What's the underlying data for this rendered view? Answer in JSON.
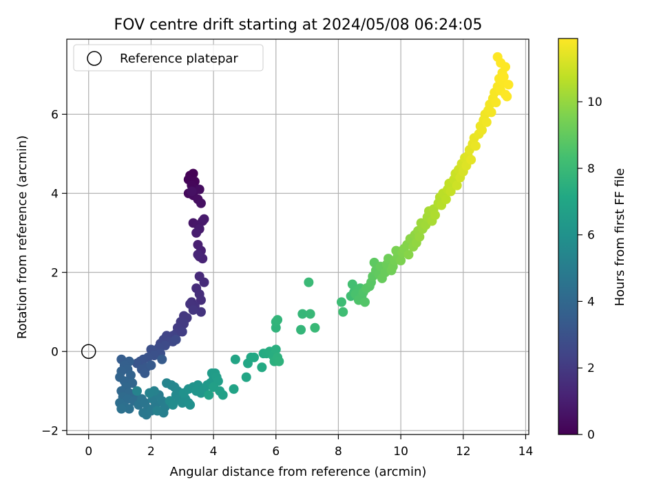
{
  "chart_data": {
    "type": "scatter",
    "title": "FOV centre drift starting at 2024/05/08 06:24:05",
    "xlabel": "Angular distance from reference (arcmin)",
    "ylabel": "Rotation from reference (arcmin)",
    "xlim": [
      -0.7,
      14.1
    ],
    "ylim": [
      -2.1,
      7.9
    ],
    "xticks": [
      0,
      2,
      4,
      6,
      8,
      10,
      12,
      14
    ],
    "yticks": [
      -2,
      0,
      2,
      4,
      6
    ],
    "grid": true,
    "legend": {
      "position": "top-left",
      "entries": [
        "Reference platepar"
      ]
    },
    "reference_point": {
      "x": 0,
      "y": 0,
      "label": "Reference platepar"
    },
    "colorbar": {
      "label": "Hours from first FF file",
      "range": [
        0,
        11.9
      ],
      "ticks": [
        0,
        2,
        4,
        6,
        8,
        10
      ],
      "colormap": "viridis"
    },
    "points": [
      [
        3.25,
        4.45,
        0.0
      ],
      [
        3.35,
        4.5,
        0.05
      ],
      [
        3.2,
        4.35,
        0.1
      ],
      [
        3.4,
        4.3,
        0.15
      ],
      [
        3.3,
        4.2,
        0.2
      ],
      [
        3.45,
        4.1,
        0.25
      ],
      [
        3.2,
        4.0,
        0.3
      ],
      [
        3.35,
        3.95,
        0.35
      ],
      [
        3.55,
        4.1,
        0.4
      ],
      [
        3.5,
        3.85,
        0.45
      ],
      [
        3.6,
        3.75,
        0.5
      ],
      [
        3.3,
        4.05,
        0.55
      ],
      [
        3.35,
        3.25,
        0.7
      ],
      [
        3.5,
        3.2,
        0.75
      ],
      [
        3.65,
        3.3,
        0.8
      ],
      [
        3.7,
        3.35,
        0.85
      ],
      [
        3.55,
        3.1,
        0.9
      ],
      [
        3.45,
        3.0,
        0.95
      ],
      [
        3.5,
        2.7,
        1.05
      ],
      [
        3.6,
        2.55,
        1.1
      ],
      [
        3.55,
        2.4,
        1.15
      ],
      [
        3.65,
        2.35,
        1.2
      ],
      [
        3.5,
        2.45,
        1.25
      ],
      [
        3.55,
        1.9,
        1.4
      ],
      [
        3.7,
        1.75,
        1.45
      ],
      [
        3.45,
        1.6,
        1.5
      ],
      [
        3.55,
        1.45,
        1.55
      ],
      [
        3.6,
        1.3,
        1.6
      ],
      [
        3.3,
        1.25,
        1.65
      ],
      [
        3.4,
        1.15,
        1.7
      ],
      [
        3.25,
        1.2,
        1.75
      ],
      [
        3.6,
        1.0,
        1.8
      ],
      [
        3.35,
        1.05,
        1.85
      ],
      [
        3.05,
        0.9,
        1.9
      ],
      [
        3.15,
        0.85,
        1.95
      ],
      [
        2.95,
        0.75,
        2.0
      ],
      [
        3.05,
        0.7,
        2.05
      ],
      [
        2.85,
        0.6,
        2.1
      ],
      [
        3.0,
        0.5,
        2.15
      ],
      [
        2.8,
        0.45,
        2.2
      ],
      [
        2.7,
        0.4,
        2.3
      ],
      [
        2.6,
        0.35,
        2.35
      ],
      [
        2.5,
        0.4,
        2.4
      ],
      [
        2.4,
        0.3,
        2.45
      ],
      [
        2.55,
        0.25,
        2.5
      ],
      [
        2.3,
        0.2,
        2.55
      ],
      [
        2.7,
        0.25,
        2.6
      ],
      [
        2.8,
        0.3,
        2.65
      ],
      [
        2.45,
        0.15,
        2.7
      ],
      [
        2.25,
        0.1,
        2.75
      ],
      [
        2.1,
        0.0,
        2.8
      ],
      [
        2.0,
        0.05,
        2.85
      ],
      [
        2.3,
        -0.05,
        2.9
      ],
      [
        2.1,
        -0.1,
        2.95
      ],
      [
        1.9,
        -0.15,
        3.0
      ],
      [
        1.75,
        -0.2,
        3.05
      ],
      [
        1.65,
        -0.25,
        3.1
      ],
      [
        1.55,
        -0.3,
        3.15
      ],
      [
        1.85,
        -0.4,
        3.2
      ],
      [
        1.7,
        -0.45,
        3.25
      ],
      [
        1.8,
        -0.55,
        3.3
      ],
      [
        2.0,
        -0.35,
        3.35
      ],
      [
        2.35,
        -0.2,
        3.4
      ],
      [
        1.05,
        -0.2,
        3.5
      ],
      [
        1.3,
        -0.25,
        3.55
      ],
      [
        1.15,
        -0.35,
        3.6
      ],
      [
        1.25,
        -0.45,
        3.65
      ],
      [
        1.05,
        -0.5,
        3.7
      ],
      [
        1.35,
        -0.6,
        3.75
      ],
      [
        1.0,
        -0.65,
        3.8
      ],
      [
        1.15,
        -0.75,
        3.85
      ],
      [
        1.4,
        -0.8,
        3.9
      ],
      [
        1.2,
        -0.9,
        3.95
      ],
      [
        1.05,
        -1.0,
        4.0
      ],
      [
        1.3,
        -1.05,
        4.05
      ],
      [
        1.5,
        -1.1,
        4.1
      ],
      [
        1.1,
        -1.15,
        4.15
      ],
      [
        1.25,
        -1.2,
        4.2
      ],
      [
        1.45,
        -1.25,
        4.25
      ],
      [
        1.0,
        -1.3,
        4.3
      ],
      [
        1.15,
        -1.4,
        4.35
      ],
      [
        1.3,
        -1.45,
        4.4
      ],
      [
        1.05,
        -1.45,
        4.45
      ],
      [
        1.6,
        -1.35,
        4.5
      ],
      [
        1.7,
        -1.2,
        4.55
      ],
      [
        1.8,
        -1.3,
        4.6
      ],
      [
        1.9,
        -1.45,
        4.65
      ],
      [
        1.75,
        -1.55,
        4.7
      ],
      [
        1.85,
        -1.6,
        4.75
      ],
      [
        2.0,
        -1.5,
        4.8
      ],
      [
        2.15,
        -1.35,
        4.85
      ],
      [
        2.05,
        -1.2,
        4.9
      ],
      [
        2.25,
        -1.1,
        4.95
      ],
      [
        2.35,
        -1.25,
        5.0
      ],
      [
        2.45,
        -1.4,
        5.05
      ],
      [
        2.4,
        -1.55,
        5.1
      ],
      [
        2.2,
        -1.5,
        5.15
      ],
      [
        2.1,
        -1.0,
        5.2
      ],
      [
        1.95,
        -1.05,
        5.25
      ],
      [
        1.55,
        -1.0,
        5.3
      ],
      [
        2.5,
        -0.8,
        5.35
      ],
      [
        2.65,
        -0.85,
        5.4
      ],
      [
        2.75,
        -0.9,
        5.45
      ],
      [
        2.85,
        -1.0,
        5.5
      ],
      [
        2.8,
        -1.1,
        5.55
      ],
      [
        2.9,
        -1.2,
        5.6
      ],
      [
        2.6,
        -1.25,
        5.65
      ],
      [
        2.7,
        -1.35,
        5.7
      ],
      [
        3.0,
        -1.3,
        5.75
      ],
      [
        3.1,
        -1.2,
        5.8
      ],
      [
        3.2,
        -1.3,
        5.85
      ],
      [
        3.25,
        -1.35,
        5.9
      ],
      [
        3.05,
        -1.05,
        5.95
      ],
      [
        3.2,
        -0.95,
        6.0
      ],
      [
        3.35,
        -0.9,
        6.05
      ],
      [
        3.5,
        -0.85,
        6.1
      ],
      [
        3.45,
        -1.0,
        6.15
      ],
      [
        3.6,
        -1.05,
        6.2
      ],
      [
        3.7,
        -0.95,
        6.25
      ],
      [
        3.8,
        -0.85,
        6.3
      ],
      [
        3.9,
        -0.8,
        6.35
      ],
      [
        4.0,
        -0.7,
        6.4
      ],
      [
        3.95,
        -0.55,
        6.45
      ],
      [
        4.05,
        -0.55,
        6.5
      ],
      [
        4.1,
        -0.65,
        6.55
      ],
      [
        4.15,
        -0.75,
        6.6
      ],
      [
        4.0,
        -0.9,
        6.65
      ],
      [
        4.2,
        -1.0,
        6.7
      ],
      [
        4.3,
        -1.1,
        6.75
      ],
      [
        3.85,
        -1.1,
        6.8
      ],
      [
        4.65,
        -0.95,
        6.9
      ],
      [
        4.7,
        -0.2,
        6.95
      ],
      [
        5.05,
        -0.65,
        7.0
      ],
      [
        5.1,
        -0.3,
        7.05
      ],
      [
        5.2,
        -0.15,
        7.1
      ],
      [
        5.3,
        -0.15,
        7.15
      ],
      [
        5.55,
        -0.4,
        7.2
      ],
      [
        5.6,
        -0.05,
        7.25
      ],
      [
        5.7,
        -0.05,
        7.3
      ],
      [
        5.8,
        0.0,
        7.35
      ],
      [
        5.9,
        -0.1,
        7.4
      ],
      [
        6.0,
        0.05,
        7.45
      ],
      [
        5.95,
        -0.25,
        7.5
      ],
      [
        6.05,
        -0.15,
        7.55
      ],
      [
        6.1,
        -0.25,
        7.6
      ],
      [
        6.0,
        0.6,
        7.65
      ],
      [
        6.0,
        0.75,
        7.7
      ],
      [
        6.05,
        0.8,
        7.75
      ],
      [
        6.8,
        0.55,
        7.8
      ],
      [
        6.85,
        0.95,
        7.85
      ],
      [
        7.1,
        0.95,
        7.9
      ],
      [
        7.25,
        0.6,
        7.95
      ],
      [
        7.05,
        1.75,
        8.0
      ],
      [
        8.1,
        1.25,
        8.1
      ],
      [
        8.15,
        1.0,
        8.15
      ],
      [
        8.4,
        1.4,
        8.2
      ],
      [
        8.5,
        1.5,
        8.25
      ],
      [
        8.45,
        1.7,
        8.3
      ],
      [
        8.6,
        1.55,
        8.35
      ],
      [
        8.7,
        1.6,
        8.4
      ],
      [
        8.55,
        1.45,
        8.45
      ],
      [
        8.75,
        1.4,
        8.5
      ],
      [
        8.65,
        1.3,
        8.55
      ],
      [
        8.8,
        1.5,
        8.6
      ],
      [
        8.85,
        1.25,
        8.65
      ],
      [
        8.9,
        1.6,
        8.7
      ],
      [
        9.0,
        1.65,
        8.75
      ],
      [
        9.05,
        1.75,
        8.8
      ],
      [
        9.1,
        1.9,
        8.85
      ],
      [
        9.15,
        2.25,
        8.9
      ],
      [
        9.2,
        2.05,
        8.95
      ],
      [
        9.3,
        1.95,
        9.0
      ],
      [
        9.35,
        2.15,
        9.05
      ],
      [
        9.4,
        1.85,
        9.1
      ],
      [
        9.5,
        2.0,
        9.15
      ],
      [
        9.55,
        2.2,
        9.2
      ],
      [
        9.6,
        2.35,
        9.25
      ],
      [
        9.7,
        2.05,
        9.3
      ],
      [
        9.75,
        2.15,
        9.35
      ],
      [
        9.8,
        2.3,
        9.4
      ],
      [
        9.9,
        2.4,
        9.45
      ],
      [
        9.85,
        2.55,
        9.5
      ],
      [
        10.0,
        2.3,
        9.55
      ],
      [
        10.05,
        2.5,
        9.6
      ],
      [
        10.1,
        2.6,
        9.65
      ],
      [
        10.2,
        2.7,
        9.7
      ],
      [
        10.25,
        2.45,
        9.75
      ],
      [
        10.3,
        2.85,
        9.8
      ],
      [
        10.4,
        2.65,
        9.85
      ],
      [
        10.45,
        2.95,
        9.9
      ],
      [
        10.5,
        2.75,
        9.95
      ],
      [
        10.55,
        3.05,
        10.0
      ],
      [
        10.6,
        2.9,
        10.05
      ],
      [
        10.7,
        3.1,
        10.1
      ],
      [
        10.65,
        3.25,
        10.15
      ],
      [
        10.8,
        3.2,
        10.2
      ],
      [
        10.85,
        3.4,
        10.25
      ],
      [
        10.9,
        3.55,
        10.3
      ],
      [
        11.0,
        3.3,
        10.35
      ],
      [
        11.05,
        3.6,
        10.4
      ],
      [
        11.1,
        3.45,
        10.45
      ],
      [
        11.2,
        3.75,
        10.5
      ],
      [
        11.25,
        3.9,
        10.55
      ],
      [
        11.3,
        3.7,
        10.6
      ],
      [
        11.35,
        4.0,
        10.65
      ],
      [
        11.45,
        3.85,
        10.7
      ],
      [
        11.5,
        4.1,
        10.75
      ],
      [
        11.55,
        4.25,
        10.8
      ],
      [
        11.6,
        4.05,
        10.85
      ],
      [
        11.7,
        4.35,
        10.9
      ],
      [
        11.75,
        4.5,
        10.95
      ],
      [
        11.8,
        4.2,
        11.0
      ],
      [
        11.85,
        4.6,
        11.05
      ],
      [
        11.9,
        4.4,
        11.1
      ],
      [
        11.95,
        4.75,
        11.15
      ],
      [
        12.0,
        4.55,
        11.2
      ],
      [
        12.05,
        4.9,
        11.25
      ],
      [
        12.1,
        4.7,
        11.3
      ],
      [
        12.15,
        4.95,
        11.35
      ],
      [
        12.2,
        5.1,
        11.4
      ],
      [
        12.25,
        4.85,
        11.45
      ],
      [
        12.3,
        5.25,
        11.5
      ],
      [
        12.35,
        5.4,
        11.52
      ],
      [
        12.4,
        5.2,
        11.55
      ],
      [
        12.5,
        5.5,
        11.57
      ],
      [
        12.55,
        5.7,
        11.6
      ],
      [
        12.6,
        5.6,
        11.62
      ],
      [
        12.65,
        5.85,
        11.64
      ],
      [
        12.7,
        6.0,
        11.66
      ],
      [
        12.75,
        5.8,
        11.68
      ],
      [
        12.8,
        6.1,
        11.7
      ],
      [
        12.85,
        6.25,
        11.72
      ],
      [
        12.9,
        6.05,
        11.74
      ],
      [
        12.95,
        6.4,
        11.76
      ],
      [
        13.0,
        6.55,
        11.78
      ],
      [
        13.05,
        6.3,
        11.8
      ],
      [
        13.1,
        6.7,
        11.82
      ],
      [
        13.15,
        6.9,
        11.84
      ],
      [
        13.2,
        6.6,
        11.85
      ],
      [
        13.25,
        7.05,
        11.86
      ],
      [
        13.3,
        6.8,
        11.87
      ],
      [
        13.35,
        7.2,
        11.88
      ],
      [
        13.4,
        6.45,
        11.89
      ],
      [
        13.3,
        6.95,
        11.9
      ],
      [
        13.2,
        7.3,
        11.9
      ],
      [
        13.1,
        7.45,
        11.9
      ],
      [
        13.45,
        6.75,
        11.9
      ],
      [
        13.35,
        6.5,
        11.9
      ]
    ]
  }
}
